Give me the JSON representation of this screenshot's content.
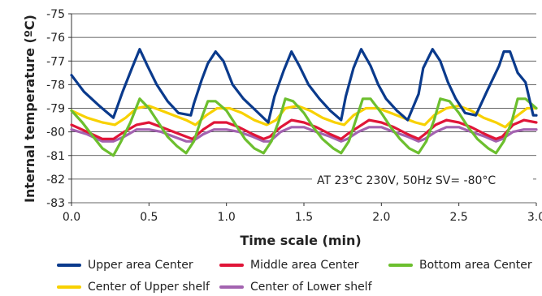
{
  "chart_data": {
    "type": "line",
    "title": "",
    "xlabel": "Time scale (min)",
    "ylabel": "Internal temperature (ºC)",
    "xlim": [
      0,
      3.0
    ],
    "ylim": [
      -83,
      -75
    ],
    "xticks": [
      "0.0",
      "0.5",
      "1.0",
      "1.5",
      "2.0",
      "2.5",
      "3.0"
    ],
    "yticks": [
      "-75",
      "-76",
      "-77",
      "-78",
      "-79",
      "-80",
      "-81",
      "-82",
      "-83"
    ],
    "grid": "horizontal",
    "annotation": "AT 23°C 230V, 50Hz  SV= -80°C",
    "series": [
      {
        "name": "Upper area Center",
        "color": "#0a3a8c",
        "x": [
          0,
          0.08,
          0.18,
          0.27,
          0.33,
          0.39,
          0.44,
          0.49,
          0.55,
          0.62,
          0.69,
          0.77,
          0.79,
          0.84,
          0.88,
          0.93,
          0.98,
          1.04,
          1.11,
          1.19,
          1.27,
          1.31,
          1.37,
          1.42,
          1.47,
          1.53,
          1.6,
          1.67,
          1.74,
          1.77,
          1.82,
          1.87,
          1.93,
          1.98,
          2.03,
          2.1,
          2.17,
          2.24,
          2.27,
          2.33,
          2.38,
          2.43,
          2.48,
          2.54,
          2.61,
          2.68,
          2.76,
          2.79,
          2.83,
          2.88,
          2.93,
          2.98,
          3.0
        ],
        "values": [
          -77.6,
          -78.3,
          -78.9,
          -79.4,
          -78.3,
          -77.3,
          -76.5,
          -77.2,
          -78.0,
          -78.7,
          -79.2,
          -79.3,
          -78.8,
          -77.8,
          -77.1,
          -76.6,
          -77.0,
          -78.0,
          -78.6,
          -79.1,
          -79.6,
          -78.5,
          -77.4,
          -76.6,
          -77.2,
          -78.0,
          -78.6,
          -79.1,
          -79.5,
          -78.5,
          -77.3,
          -76.5,
          -77.2,
          -78.0,
          -78.6,
          -79.1,
          -79.5,
          -78.4,
          -77.3,
          -76.5,
          -77.0,
          -77.9,
          -78.6,
          -79.2,
          -79.3,
          -78.3,
          -77.2,
          -76.6,
          -76.6,
          -77.5,
          -77.9,
          -79.3,
          -79.3
        ]
      },
      {
        "name": "Middle area Center",
        "color": "#e01538",
        "x": [
          0,
          0.1,
          0.2,
          0.27,
          0.34,
          0.42,
          0.5,
          0.58,
          0.66,
          0.74,
          0.78,
          0.85,
          0.92,
          1.0,
          1.08,
          1.17,
          1.24,
          1.28,
          1.35,
          1.42,
          1.5,
          1.58,
          1.67,
          1.74,
          1.78,
          1.85,
          1.92,
          2.0,
          2.08,
          2.17,
          2.24,
          2.28,
          2.35,
          2.42,
          2.5,
          2.58,
          2.67,
          2.74,
          2.78,
          2.85,
          2.92,
          3.0
        ],
        "values": [
          -79.7,
          -80.0,
          -80.3,
          -80.3,
          -80.0,
          -79.7,
          -79.6,
          -79.8,
          -80.0,
          -80.2,
          -80.3,
          -79.9,
          -79.6,
          -79.6,
          -79.8,
          -80.1,
          -80.3,
          -80.2,
          -79.8,
          -79.5,
          -79.6,
          -79.8,
          -80.1,
          -80.3,
          -80.1,
          -79.8,
          -79.5,
          -79.6,
          -79.8,
          -80.1,
          -80.3,
          -80.1,
          -79.7,
          -79.5,
          -79.6,
          -79.8,
          -80.1,
          -80.3,
          -80.2,
          -79.7,
          -79.5,
          -79.6
        ]
      },
      {
        "name": "Bottom area Center",
        "color": "#6cbf2e",
        "x": [
          0,
          0.07,
          0.14,
          0.2,
          0.27,
          0.32,
          0.38,
          0.44,
          0.5,
          0.56,
          0.62,
          0.68,
          0.74,
          0.79,
          0.84,
          0.88,
          0.93,
          1.0,
          1.06,
          1.12,
          1.18,
          1.24,
          1.29,
          1.34,
          1.38,
          1.43,
          1.5,
          1.56,
          1.62,
          1.69,
          1.74,
          1.79,
          1.84,
          1.88,
          1.93,
          2.0,
          2.06,
          2.12,
          2.18,
          2.24,
          2.29,
          2.34,
          2.38,
          2.44,
          2.5,
          2.56,
          2.62,
          2.69,
          2.74,
          2.79,
          2.84,
          2.88,
          2.93,
          3.0
        ],
        "values": [
          -79.1,
          -79.6,
          -80.2,
          -80.7,
          -81.0,
          -80.4,
          -79.6,
          -78.6,
          -79.0,
          -79.6,
          -80.2,
          -80.6,
          -80.9,
          -80.4,
          -79.4,
          -78.7,
          -78.7,
          -79.1,
          -79.7,
          -80.3,
          -80.7,
          -80.9,
          -80.4,
          -79.5,
          -78.6,
          -78.7,
          -79.2,
          -79.8,
          -80.3,
          -80.7,
          -80.9,
          -80.4,
          -79.4,
          -78.6,
          -78.6,
          -79.2,
          -79.8,
          -80.3,
          -80.7,
          -80.9,
          -80.4,
          -79.5,
          -78.6,
          -78.7,
          -79.2,
          -79.8,
          -80.3,
          -80.7,
          -80.9,
          -80.4,
          -79.6,
          -78.6,
          -78.6,
          -79.0
        ]
      },
      {
        "name": "Center of Upper shelf",
        "color": "#f8d100",
        "x": [
          0,
          0.1,
          0.2,
          0.28,
          0.35,
          0.42,
          0.5,
          0.58,
          0.66,
          0.74,
          0.8,
          0.87,
          0.94,
          1.02,
          1.1,
          1.18,
          1.26,
          1.32,
          1.38,
          1.46,
          1.54,
          1.62,
          1.7,
          1.76,
          1.82,
          1.9,
          1.98,
          2.06,
          2.14,
          2.22,
          2.28,
          2.34,
          2.42,
          2.5,
          2.58,
          2.66,
          2.74,
          2.8,
          2.86,
          2.94,
          3.0
        ],
        "values": [
          -79.1,
          -79.4,
          -79.6,
          -79.7,
          -79.4,
          -79.0,
          -78.9,
          -79.1,
          -79.3,
          -79.5,
          -79.7,
          -79.3,
          -79.0,
          -79.0,
          -79.2,
          -79.5,
          -79.7,
          -79.5,
          -79.0,
          -78.9,
          -79.1,
          -79.4,
          -79.6,
          -79.7,
          -79.3,
          -79.0,
          -79.0,
          -79.2,
          -79.4,
          -79.6,
          -79.7,
          -79.3,
          -79.0,
          -78.9,
          -79.1,
          -79.4,
          -79.6,
          -79.8,
          -79.4,
          -79.0,
          -79.0
        ]
      },
      {
        "name": "Center of Lower shelf",
        "color": "#a363b0",
        "x": [
          0,
          0.1,
          0.2,
          0.27,
          0.34,
          0.42,
          0.5,
          0.58,
          0.66,
          0.74,
          0.78,
          0.85,
          0.92,
          1.0,
          1.08,
          1.17,
          1.24,
          1.28,
          1.35,
          1.42,
          1.5,
          1.58,
          1.67,
          1.74,
          1.78,
          1.85,
          1.92,
          2.0,
          2.08,
          2.17,
          2.24,
          2.28,
          2.35,
          2.42,
          2.5,
          2.58,
          2.67,
          2.74,
          2.78,
          2.85,
          2.92,
          3.0
        ],
        "values": [
          -79.9,
          -80.1,
          -80.4,
          -80.4,
          -80.2,
          -79.9,
          -79.9,
          -80.0,
          -80.2,
          -80.4,
          -80.4,
          -80.1,
          -79.9,
          -79.9,
          -80.0,
          -80.2,
          -80.4,
          -80.4,
          -80.0,
          -79.8,
          -79.8,
          -80.0,
          -80.2,
          -80.4,
          -80.3,
          -80.0,
          -79.8,
          -79.8,
          -80.0,
          -80.2,
          -80.4,
          -80.3,
          -80.0,
          -79.8,
          -79.8,
          -80.0,
          -80.2,
          -80.4,
          -80.3,
          -80.0,
          -79.9,
          -79.9
        ]
      }
    ]
  }
}
